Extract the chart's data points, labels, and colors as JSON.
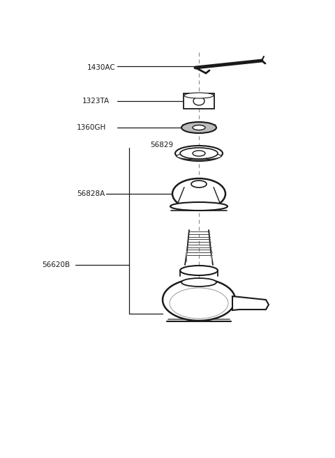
{
  "bg_color": "#ffffff",
  "line_color": "#1a1a1a",
  "label_color": "#1a1a1a",
  "figw": 4.8,
  "figh": 6.57,
  "dpi": 100,
  "parts": [
    {
      "id": "1430AC",
      "label": "1430AC"
    },
    {
      "id": "1323TA",
      "label": "1323TA"
    },
    {
      "id": "1360GH",
      "label": "1360GH"
    },
    {
      "id": "56829",
      "label": "56829"
    },
    {
      "id": "56828A",
      "label": "56828A"
    },
    {
      "id": "56620B",
      "label": "56620B"
    }
  ]
}
